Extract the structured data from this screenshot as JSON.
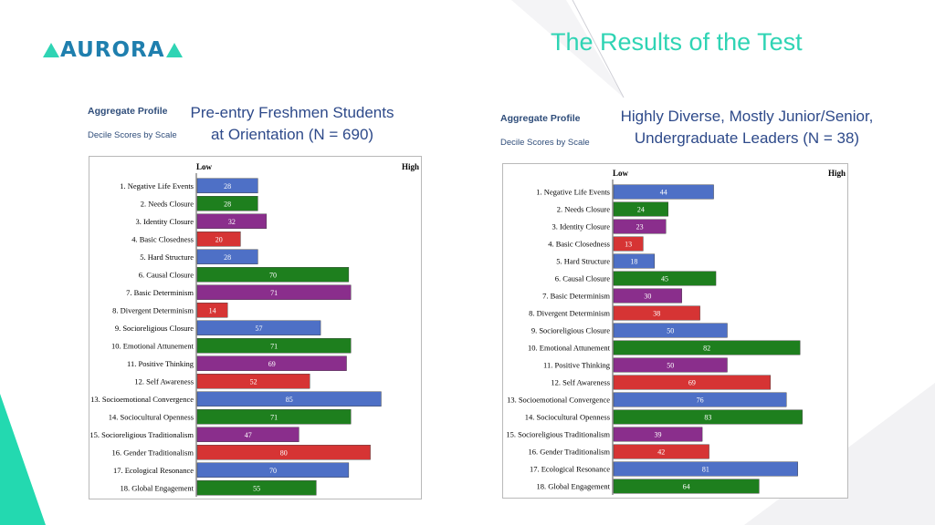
{
  "slide": {
    "logo_text": "AURORA",
    "title": "The Results of the Test"
  },
  "colors": {
    "teal": "#2fd4b4",
    "blue": "#4e70c6",
    "green": "#1e7f1e",
    "purple": "#8a2e8c",
    "red": "#d63434"
  },
  "left": {
    "aggregate_profile": "Aggregate Profile",
    "decile_scores": "Decile Scores by Scale",
    "caption_line1": "Pre-entry Freshmen Students",
    "caption_line2": "at Orientation (N = 690)"
  },
  "right": {
    "aggregate_profile": "Aggregate Profile",
    "decile_scores": "Decile Scores by Scale",
    "caption_line1": "Highly Diverse, Mostly Junior/Senior,",
    "caption_line2": "Undergraduate Leaders (N = 38)"
  },
  "chart_data": [
    {
      "type": "bar",
      "orientation": "horizontal",
      "xlabel_low": "Low",
      "xlabel_high": "High",
      "xlim": [
        0,
        100
      ],
      "categories": [
        "1. Negative Life Events",
        "2. Needs Closure",
        "3. Identity Closure",
        "4. Basic Closedness",
        "5. Hard Structure",
        "6. Causal Closure",
        "7. Basic Determinism",
        "8. Divergent Determinism",
        "9. Socioreligious Closure",
        "10. Emotional Attunement",
        "11. Positive Thinking",
        "12. Self Awareness",
        "13. Socioemotional Convergence",
        "14. Sociocultural Openness",
        "15. Socioreligious Traditionalism",
        "16. Gender Traditionalism",
        "17. Ecological Resonance",
        "18. Global Engagement"
      ],
      "values": [
        28,
        28,
        32,
        20,
        28,
        70,
        71,
        14,
        57,
        71,
        69,
        52,
        85,
        71,
        47,
        80,
        70,
        55
      ],
      "colors": [
        "blue",
        "green",
        "purple",
        "red",
        "blue",
        "green",
        "purple",
        "red",
        "blue",
        "green",
        "purple",
        "red",
        "blue",
        "green",
        "purple",
        "red",
        "blue",
        "green"
      ]
    },
    {
      "type": "bar",
      "orientation": "horizontal",
      "xlabel_low": "Low",
      "xlabel_high": "High",
      "xlim": [
        0,
        100
      ],
      "categories": [
        "1. Negative Life Events",
        "2. Needs Closure",
        "3. Identity Closure",
        "4. Basic Closedness",
        "5. Hard Structure",
        "6. Causal Closure",
        "7. Basic Determinism",
        "8. Divergent Determinism",
        "9. Socioreligious Closure",
        "10. Emotional Attunement",
        "11. Positive Thinking",
        "12. Self Awareness",
        "13. Socioemotional Convergence",
        "14. Sociocultural Openness",
        "15. Socioreligious Traditionalism",
        "16. Gender Traditionalism",
        "17. Ecological Resonance",
        "18. Global Engagement"
      ],
      "values": [
        44,
        24,
        23,
        13,
        18,
        45,
        30,
        38,
        50,
        82,
        50,
        69,
        76,
        83,
        39,
        42,
        81,
        64
      ],
      "colors": [
        "blue",
        "green",
        "purple",
        "red",
        "blue",
        "green",
        "purple",
        "red",
        "blue",
        "green",
        "purple",
        "red",
        "blue",
        "green",
        "purple",
        "red",
        "blue",
        "green"
      ]
    }
  ]
}
